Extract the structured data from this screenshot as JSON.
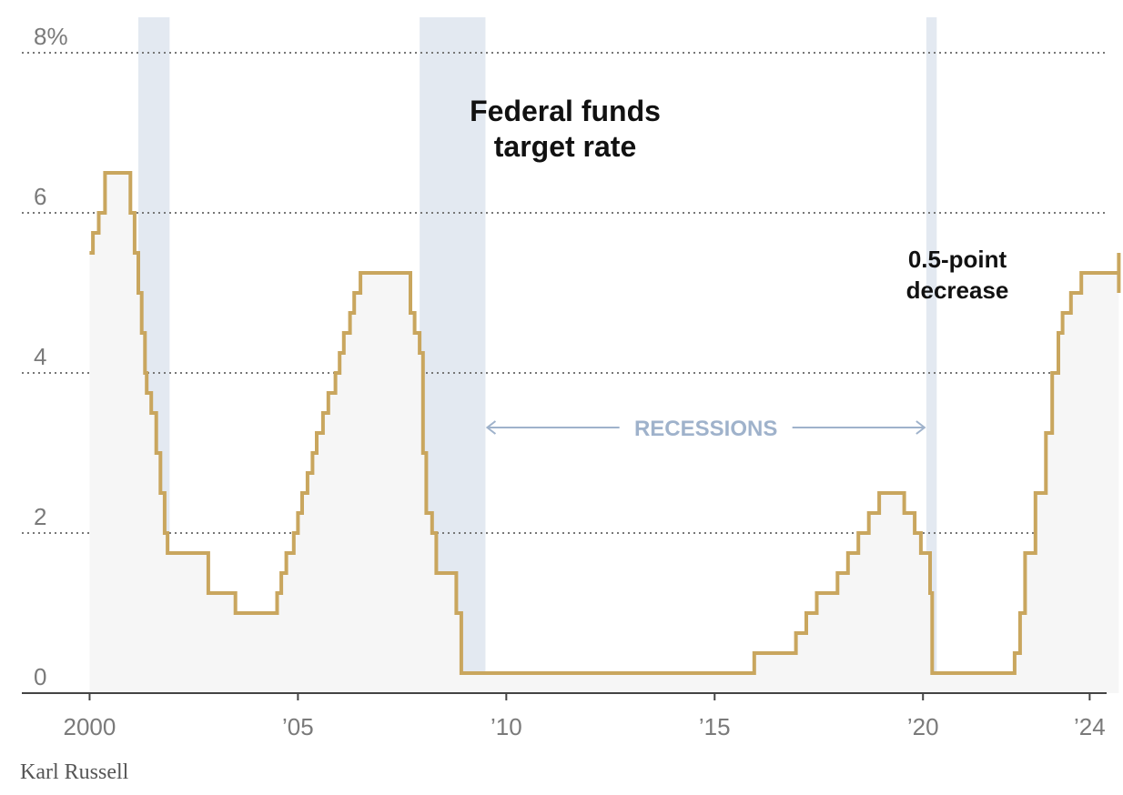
{
  "credit": "Karl Russell",
  "chart_data": {
    "type": "line",
    "title": "Federal funds target rate",
    "xlabel": "",
    "ylabel": "",
    "xlim": [
      1997.85,
      2024.8
    ],
    "ylim": [
      0,
      8
    ],
    "y_ticks": [
      {
        "value": 0,
        "label": "0"
      },
      {
        "value": 2,
        "label": "2"
      },
      {
        "value": 4,
        "label": "4"
      },
      {
        "value": 6,
        "label": "6"
      },
      {
        "value": 8,
        "label": "8%"
      }
    ],
    "x_ticks": [
      {
        "value": 2000,
        "label": "2000"
      },
      {
        "value": 2005,
        "label": "’05"
      },
      {
        "value": 2010,
        "label": "’10"
      },
      {
        "value": 2015,
        "label": "’15"
      },
      {
        "value": 2020,
        "label": "’20"
      },
      {
        "value": 2024,
        "label": "’24"
      }
    ],
    "grid": "horizontal dotted",
    "line_color": "#c9a65e",
    "fill_color": "#f6f6f6",
    "recession_color": "#e3e9f1",
    "recession_label_color": "#9fb2cb",
    "recessions": [
      [
        2001.17,
        2001.92
      ],
      [
        2007.92,
        2009.5
      ],
      [
        2020.08,
        2020.33
      ]
    ],
    "recessions_label": "RECESSIONS",
    "annotation": {
      "lines": [
        "0.5-point",
        "decrease"
      ]
    },
    "series": [
      {
        "x": [
          2000.0,
          2000.08,
          2000.22,
          2000.37,
          2000.98,
          2001.08,
          2001.17,
          2001.25,
          2001.33,
          2001.37,
          2001.48,
          2001.6,
          2001.7,
          2001.8,
          2001.87,
          2001.95,
          2002.85,
          2003.5,
          2004.5,
          2004.6,
          2004.72,
          2004.9,
          2005.0,
          2005.1,
          2005.23,
          2005.35,
          2005.45,
          2005.6,
          2005.73,
          2005.9,
          2006.0,
          2006.1,
          2006.25,
          2006.35,
          2006.5,
          2007.7,
          2007.8,
          2007.92,
          2008.0,
          2008.08,
          2008.22,
          2008.32,
          2008.8,
          2008.92,
          2009.0,
          2015.95,
          2016.95,
          2017.2,
          2017.45,
          2017.95,
          2018.2,
          2018.45,
          2018.7,
          2018.95,
          2019.55,
          2019.8,
          2019.95,
          2020.17,
          2020.22,
          2022.2,
          2022.33,
          2022.45,
          2022.7,
          2022.95,
          2023.1,
          2023.25,
          2023.35,
          2023.55,
          2023.8,
          2024.7,
          2024.7
        ],
        "y": [
          5.5,
          5.75,
          6.0,
          6.5,
          6.0,
          5.5,
          5.0,
          4.5,
          4.0,
          3.75,
          3.5,
          3.0,
          2.5,
          2.0,
          1.75,
          1.75,
          1.25,
          1.0,
          1.25,
          1.5,
          1.75,
          2.0,
          2.25,
          2.5,
          2.75,
          3.0,
          3.25,
          3.5,
          3.75,
          4.0,
          4.25,
          4.5,
          4.75,
          5.0,
          5.25,
          4.75,
          4.5,
          4.25,
          3.0,
          2.25,
          2.0,
          1.5,
          1.0,
          0.25,
          0.25,
          0.5,
          0.75,
          1.0,
          1.25,
          1.5,
          1.75,
          2.0,
          2.25,
          2.5,
          2.25,
          2.0,
          1.75,
          1.25,
          0.25,
          0.5,
          1.0,
          1.75,
          2.5,
          3.25,
          4.0,
          4.5,
          4.75,
          5.0,
          5.25,
          5.5,
          5.0
        ]
      }
    ]
  }
}
